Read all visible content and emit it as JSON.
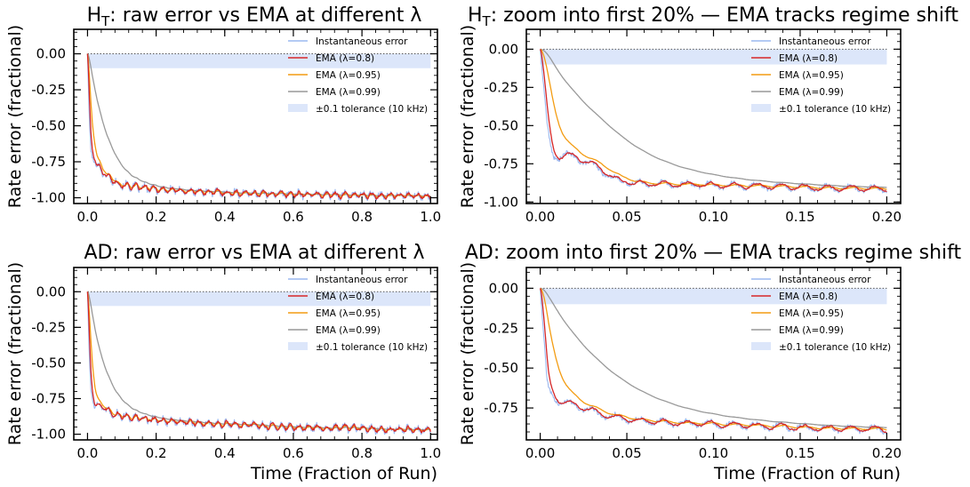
{
  "chart_data": [
    {
      "type": "line",
      "title_main": "H",
      "title_sub": "T",
      "title_rest": ": raw error vs EMA at different λ",
      "xlabel": "",
      "ylabel": "Rate error (fractional)",
      "xlim": [
        -0.04,
        1.02
      ],
      "ylim": [
        -1.04,
        0.17
      ],
      "xticks": [
        0.0,
        0.2,
        0.4,
        0.6,
        0.8,
        1.0
      ],
      "xtick_labels": [
        "0.0",
        "0.2",
        "0.4",
        "0.6",
        "0.8",
        "1.0"
      ],
      "yticks": [
        0.0,
        -0.25,
        -0.5,
        -0.75,
        -1.0
      ],
      "ytick_labels": [
        "0.00",
        "-0.25",
        "-0.50",
        "-0.75",
        "-1.00"
      ],
      "tolerance_band": [
        -0.1,
        0.0
      ],
      "reference_line": 0.0,
      "legend_position": "top-right",
      "series": [
        {
          "name": "Instantaneous error",
          "color": "#9bb8f0",
          "kind": "line",
          "smoothing": "raw",
          "x": [
            0.0,
            0.005,
            0.01,
            0.015,
            0.02,
            0.03,
            0.05,
            0.08,
            0.1,
            0.15,
            0.2,
            0.3,
            0.4,
            0.5,
            0.6,
            0.7,
            0.8,
            0.9,
            1.0
          ],
          "y": [
            0.0,
            -0.45,
            -0.68,
            -0.72,
            -0.74,
            -0.78,
            -0.84,
            -0.89,
            -0.91,
            -0.93,
            -0.94,
            -0.955,
            -0.965,
            -0.97,
            -0.975,
            -0.98,
            -0.982,
            -0.985,
            -0.99
          ]
        },
        {
          "name": "EMA (λ=0.8)",
          "color": "#d62728",
          "kind": "line",
          "smoothing": "light"
        },
        {
          "name": "EMA (λ=0.95)",
          "color": "#f39c12",
          "kind": "line",
          "smoothing": "medium"
        },
        {
          "name": "EMA (λ=0.99)",
          "color": "#999999",
          "kind": "line",
          "smoothing": "heavy"
        },
        {
          "name": "±0.1 tolerance (10 kHz)",
          "color": "#dce6fa",
          "kind": "band"
        }
      ]
    },
    {
      "type": "line",
      "title_main": "H",
      "title_sub": "T",
      "title_rest": ": zoom into first 20% — EMA tracks regime shift",
      "xlabel": "",
      "ylabel": "Rate error (fractional)",
      "xlim": [
        -0.008,
        0.208
      ],
      "ylim": [
        -1.01,
        0.13
      ],
      "xticks": [
        0.0,
        0.05,
        0.1,
        0.15,
        0.2
      ],
      "xtick_labels": [
        "0.00",
        "0.05",
        "0.10",
        "0.15",
        "0.20"
      ],
      "yticks": [
        0.0,
        -0.25,
        -0.5,
        -0.75,
        -1.0
      ],
      "ytick_labels": [
        "0.00",
        "-0.25",
        "-0.50",
        "-0.75",
        "-1.00"
      ],
      "tolerance_band": [
        -0.1,
        0.0
      ],
      "reference_line": 0.0,
      "legend_position": "top-right",
      "series": [
        {
          "name": "Instantaneous error",
          "color": "#9bb8f0",
          "kind": "line",
          "smoothing": "raw",
          "x": [
            0.0,
            0.002,
            0.004,
            0.006,
            0.008,
            0.01,
            0.012,
            0.015,
            0.02,
            0.025,
            0.03,
            0.035,
            0.04,
            0.045,
            0.05,
            0.06,
            0.07,
            0.08,
            0.1,
            0.12,
            0.14,
            0.16,
            0.18,
            0.2
          ],
          "y": [
            0.0,
            -0.25,
            -0.5,
            -0.64,
            -0.7,
            -0.71,
            -0.7,
            -0.69,
            -0.71,
            -0.73,
            -0.76,
            -0.79,
            -0.83,
            -0.86,
            -0.87,
            -0.88,
            -0.88,
            -0.885,
            -0.89,
            -0.895,
            -0.9,
            -0.905,
            -0.91,
            -0.915
          ]
        },
        {
          "name": "EMA (λ=0.8)",
          "color": "#d62728",
          "kind": "line",
          "smoothing": "light"
        },
        {
          "name": "EMA (λ=0.95)",
          "color": "#f39c12",
          "kind": "line",
          "smoothing": "medium"
        },
        {
          "name": "EMA (λ=0.99)",
          "color": "#999999",
          "kind": "line",
          "smoothing": "heavy"
        },
        {
          "name": "±0.1 tolerance (10 kHz)",
          "color": "#dce6fa",
          "kind": "band"
        }
      ]
    },
    {
      "type": "line",
      "title_main": "AD: raw error vs EMA at different λ",
      "title_sub": "",
      "title_rest": "",
      "xlabel": "Time (Fraction of Run)",
      "ylabel": "Rate error (fractional)",
      "xlim": [
        -0.04,
        1.02
      ],
      "ylim": [
        -1.04,
        0.17
      ],
      "xticks": [
        0.0,
        0.2,
        0.4,
        0.6,
        0.8,
        1.0
      ],
      "xtick_labels": [
        "0.0",
        "0.2",
        "0.4",
        "0.6",
        "0.8",
        "1.0"
      ],
      "yticks": [
        0.0,
        -0.25,
        -0.5,
        -0.75,
        -1.0
      ],
      "ytick_labels": [
        "0.00",
        "-0.25",
        "-0.50",
        "-0.75",
        "-1.00"
      ],
      "tolerance_band": [
        -0.1,
        0.0
      ],
      "reference_line": 0.0,
      "legend_position": "top-right",
      "series": [
        {
          "name": "Instantaneous error",
          "color": "#9bb8f0",
          "kind": "line",
          "smoothing": "raw",
          "x": [
            0.0,
            0.005,
            0.01,
            0.015,
            0.02,
            0.03,
            0.05,
            0.08,
            0.1,
            0.15,
            0.2,
            0.3,
            0.4,
            0.5,
            0.6,
            0.7,
            0.8,
            0.9,
            1.0
          ],
          "y": [
            0.0,
            -0.45,
            -0.7,
            -0.75,
            -0.78,
            -0.8,
            -0.83,
            -0.86,
            -0.87,
            -0.89,
            -0.9,
            -0.92,
            -0.93,
            -0.94,
            -0.95,
            -0.955,
            -0.96,
            -0.965,
            -0.97
          ]
        },
        {
          "name": "EMA (λ=0.8)",
          "color": "#d62728",
          "kind": "line",
          "smoothing": "light"
        },
        {
          "name": "EMA (λ=0.95)",
          "color": "#f39c12",
          "kind": "line",
          "smoothing": "medium"
        },
        {
          "name": "EMA (λ=0.99)",
          "color": "#999999",
          "kind": "line",
          "smoothing": "heavy"
        },
        {
          "name": "±0.1 tolerance (10 kHz)",
          "color": "#dce6fa",
          "kind": "band"
        }
      ]
    },
    {
      "type": "line",
      "title_main": "AD: zoom into first 20% — EMA tracks regime shift",
      "title_sub": "",
      "title_rest": "",
      "xlabel": "Time (Fraction of Run)",
      "ylabel": "Rate error (fractional)",
      "xlim": [
        -0.008,
        0.208
      ],
      "ylim": [
        -0.95,
        0.13
      ],
      "xticks": [
        0.0,
        0.05,
        0.1,
        0.15,
        0.2
      ],
      "xtick_labels": [
        "0.00",
        "0.05",
        "0.10",
        "0.15",
        "0.20"
      ],
      "yticks": [
        0.0,
        -0.25,
        -0.5,
        -0.75
      ],
      "ytick_labels": [
        "0.00",
        "-0.25",
        "-0.50",
        "-0.75"
      ],
      "tolerance_band": [
        -0.1,
        0.0
      ],
      "reference_line": 0.0,
      "legend_position": "top-right",
      "series": [
        {
          "name": "Instantaneous error",
          "color": "#9bb8f0",
          "kind": "line",
          "smoothing": "raw",
          "x": [
            0.0,
            0.002,
            0.004,
            0.006,
            0.008,
            0.01,
            0.012,
            0.015,
            0.02,
            0.025,
            0.03,
            0.035,
            0.04,
            0.045,
            0.05,
            0.06,
            0.07,
            0.08,
            0.1,
            0.12,
            0.14,
            0.16,
            0.18,
            0.2
          ],
          "y": [
            0.0,
            -0.3,
            -0.6,
            -0.66,
            -0.68,
            -0.7,
            -0.72,
            -0.72,
            -0.73,
            -0.75,
            -0.77,
            -0.79,
            -0.8,
            -0.81,
            -0.82,
            -0.83,
            -0.84,
            -0.845,
            -0.85,
            -0.86,
            -0.87,
            -0.875,
            -0.88,
            -0.885
          ]
        },
        {
          "name": "EMA (λ=0.8)",
          "color": "#d62728",
          "kind": "line",
          "smoothing": "light"
        },
        {
          "name": "EMA (λ=0.95)",
          "color": "#f39c12",
          "kind": "line",
          "smoothing": "medium"
        },
        {
          "name": "EMA (λ=0.99)",
          "color": "#999999",
          "kind": "line",
          "smoothing": "heavy"
        },
        {
          "name": "±0.1 tolerance (10 kHz)",
          "color": "#dce6fa",
          "kind": "band"
        }
      ]
    }
  ]
}
